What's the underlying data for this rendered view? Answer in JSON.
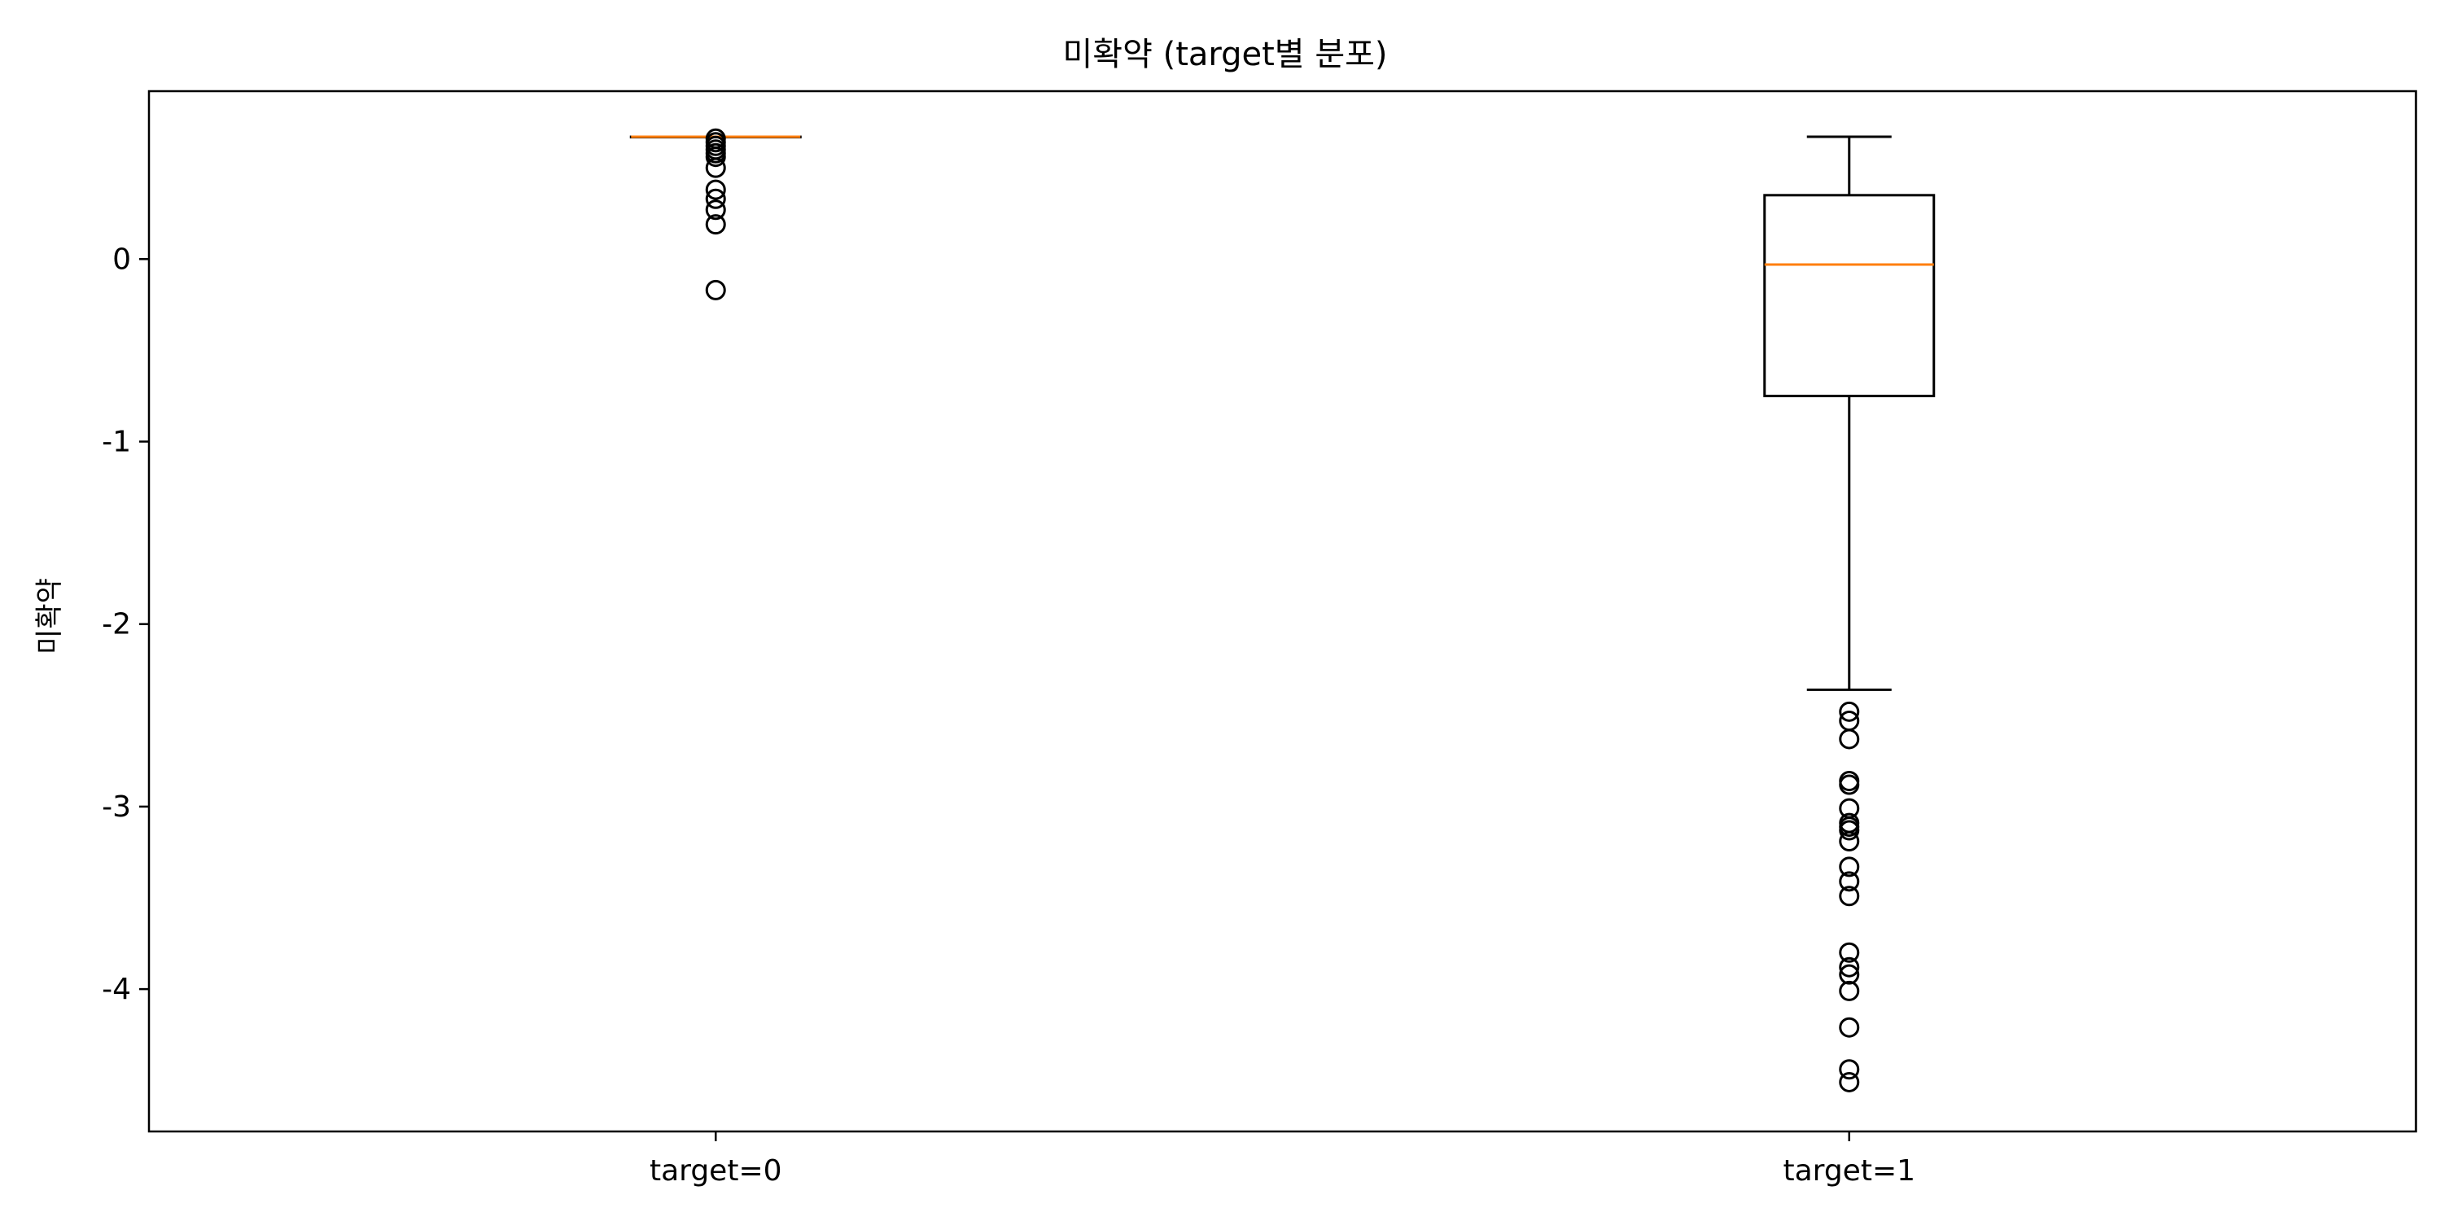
{
  "chart_data": {
    "type": "box",
    "title": "미확약 (target별 분포)",
    "xlabel": "",
    "ylabel": "미확약",
    "ylim": [
      -4.78,
      0.92
    ],
    "yticks": [
      0,
      -1,
      -2,
      -3,
      -4
    ],
    "ytick_labels": [
      "0",
      "-1",
      "-2",
      "-3",
      "-4"
    ],
    "categories": [
      "target=0",
      "target=1"
    ],
    "grid": false,
    "colors": {
      "box": "#000000",
      "median": "#ff7f0e",
      "flier": "#000000"
    },
    "boxes": [
      {
        "name": "target=0",
        "whisker_low": 0.67,
        "q1": 0.67,
        "median": 0.67,
        "q3": 0.67,
        "whisker_high": 0.67,
        "fliers": [
          0.66,
          0.64,
          0.62,
          0.6,
          0.58,
          0.56,
          0.5,
          0.38,
          0.33,
          0.27,
          0.19,
          -0.17
        ]
      },
      {
        "name": "target=1",
        "whisker_low": -2.36,
        "q1": -0.75,
        "median": -0.03,
        "q3": 0.35,
        "whisker_high": 0.67,
        "fliers": [
          -2.48,
          -2.53,
          -2.63,
          -2.86,
          -2.88,
          -3.01,
          -3.09,
          -3.11,
          -3.13,
          -3.19,
          -3.33,
          -3.41,
          -3.49,
          -3.8,
          -3.88,
          -3.92,
          -4.01,
          -4.21,
          -4.44,
          -4.51
        ]
      }
    ]
  }
}
